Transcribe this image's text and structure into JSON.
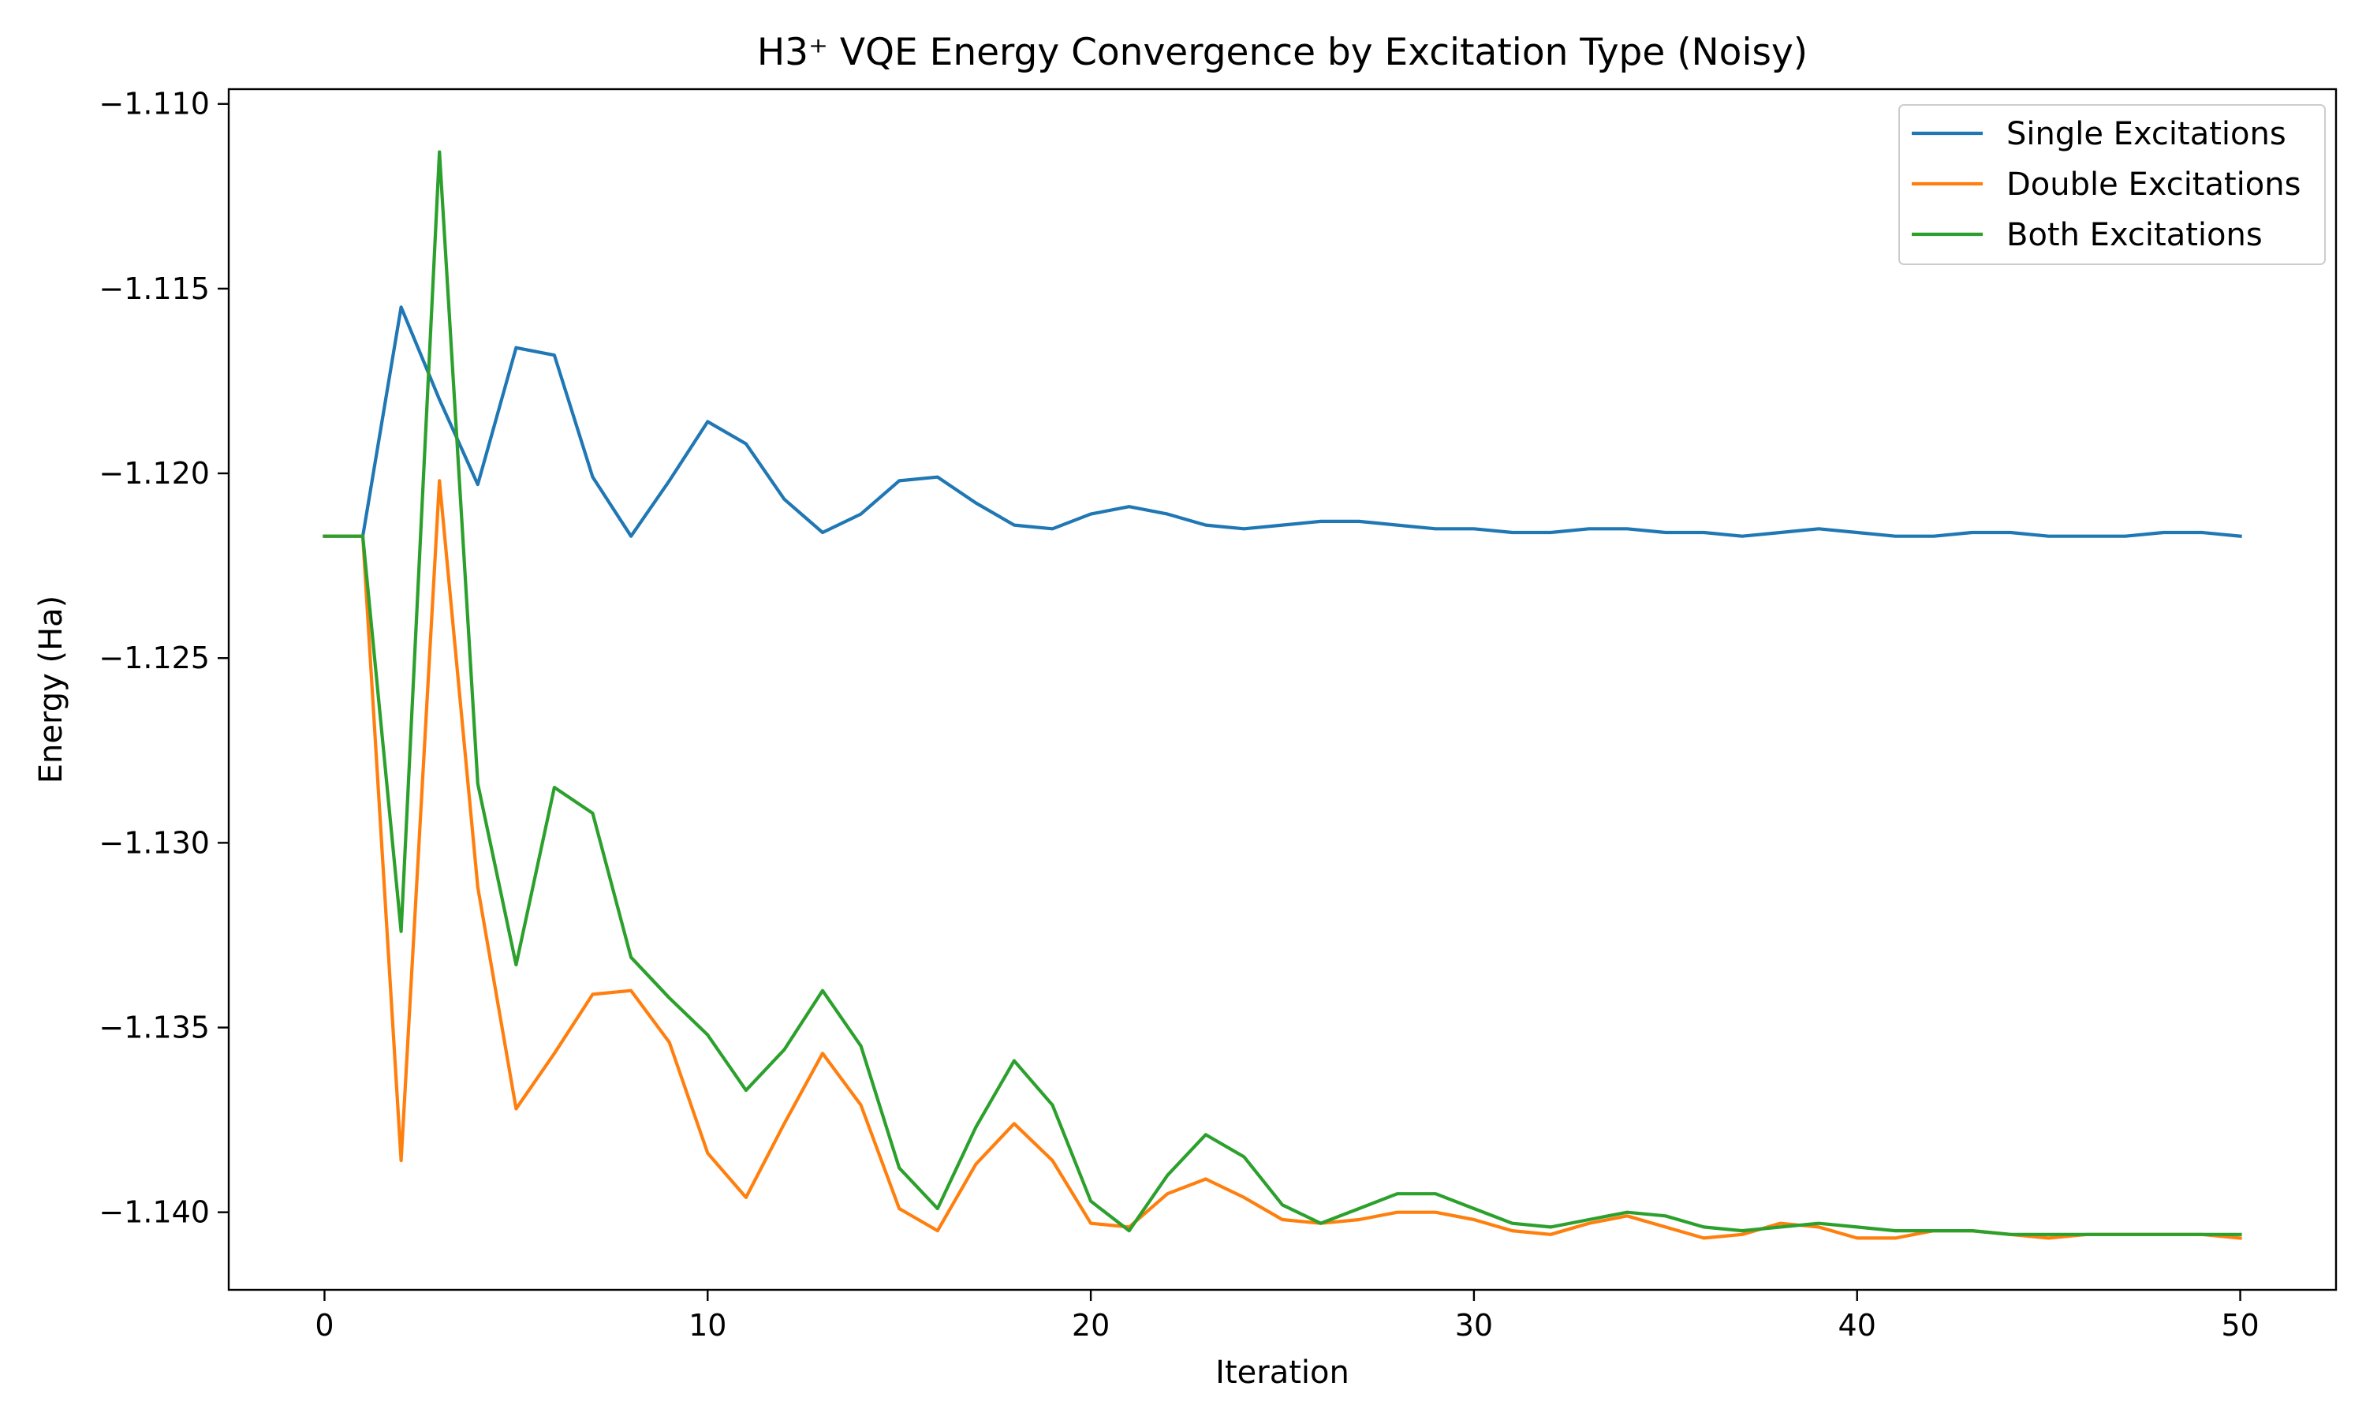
{
  "chart_data": {
    "type": "line",
    "title": "H3⁺ VQE Energy Convergence by Excitation Type (Noisy)",
    "xlabel": "Iteration",
    "ylabel": "Energy (Ha)",
    "xlim": [
      -2.5,
      52.5
    ],
    "ylim": [
      -1.1421,
      -1.1096
    ],
    "x_ticks": [
      0,
      10,
      20,
      30,
      40,
      50
    ],
    "x_tick_labels": [
      "0",
      "10",
      "20",
      "30",
      "40",
      "50"
    ],
    "y_ticks": [
      -1.11,
      -1.115,
      -1.12,
      -1.125,
      -1.13,
      -1.135,
      -1.14
    ],
    "y_tick_labels": [
      "−1.110",
      "−1.115",
      "−1.120",
      "−1.125",
      "−1.130",
      "−1.135",
      "−1.140"
    ],
    "grid": false,
    "legend_position": "top-right",
    "x": [
      0,
      1,
      2,
      3,
      4,
      5,
      6,
      7,
      8,
      9,
      10,
      11,
      12,
      13,
      14,
      15,
      16,
      17,
      18,
      19,
      20,
      21,
      22,
      23,
      24,
      25,
      26,
      27,
      28,
      29,
      30,
      31,
      32,
      33,
      34,
      35,
      36,
      37,
      38,
      39,
      40,
      41,
      42,
      43,
      44,
      45,
      46,
      47,
      48,
      49,
      50
    ],
    "series": [
      {
        "name": "Single Excitations",
        "color": "#1f77b4",
        "values": [
          -1.1217,
          -1.1217,
          -1.1155,
          -1.118,
          -1.1203,
          -1.1166,
          -1.1168,
          -1.1201,
          -1.1217,
          -1.1202,
          -1.1186,
          -1.1192,
          -1.1207,
          -1.1216,
          -1.1211,
          -1.1202,
          -1.1201,
          -1.1208,
          -1.1214,
          -1.1215,
          -1.1211,
          -1.1209,
          -1.1211,
          -1.1214,
          -1.1215,
          -1.1214,
          -1.1213,
          -1.1213,
          -1.1214,
          -1.1215,
          -1.1215,
          -1.1216,
          -1.1216,
          -1.1215,
          -1.1215,
          -1.1216,
          -1.1216,
          -1.1217,
          -1.1216,
          -1.1215,
          -1.1216,
          -1.1217,
          -1.1217,
          -1.1216,
          -1.1216,
          -1.1217,
          -1.1217,
          -1.1217,
          -1.1216,
          -1.1216,
          -1.1217
        ]
      },
      {
        "name": "Double Excitations",
        "color": "#ff7f0e",
        "values": [
          -1.1217,
          -1.1217,
          -1.1386,
          -1.1202,
          -1.1312,
          -1.1372,
          -1.1357,
          -1.1341,
          -1.134,
          -1.1354,
          -1.1384,
          -1.1396,
          -1.1376,
          -1.1357,
          -1.1371,
          -1.1399,
          -1.1405,
          -1.1387,
          -1.1376,
          -1.1386,
          -1.1403,
          -1.1404,
          -1.1395,
          -1.1391,
          -1.1396,
          -1.1402,
          -1.1403,
          -1.1402,
          -1.14,
          -1.14,
          -1.1402,
          -1.1405,
          -1.1406,
          -1.1403,
          -1.1401,
          -1.1404,
          -1.1407,
          -1.1406,
          -1.1403,
          -1.1404,
          -1.1407,
          -1.1407,
          -1.1405,
          -1.1405,
          -1.1406,
          -1.1407,
          -1.1406,
          -1.1406,
          -1.1406,
          -1.1406,
          -1.1407
        ]
      },
      {
        "name": "Both Excitations",
        "color": "#2ca02c",
        "values": [
          -1.1217,
          -1.1217,
          -1.1324,
          -1.1113,
          -1.1284,
          -1.1333,
          -1.1285,
          -1.1292,
          -1.1331,
          -1.1342,
          -1.1352,
          -1.1367,
          -1.1356,
          -1.134,
          -1.1355,
          -1.1388,
          -1.1399,
          -1.1377,
          -1.1359,
          -1.1371,
          -1.1397,
          -1.1405,
          -1.139,
          -1.1379,
          -1.1385,
          -1.1398,
          -1.1403,
          -1.1399,
          -1.1395,
          -1.1395,
          -1.1399,
          -1.1403,
          -1.1404,
          -1.1402,
          -1.14,
          -1.1401,
          -1.1404,
          -1.1405,
          -1.1404,
          -1.1403,
          -1.1404,
          -1.1405,
          -1.1405,
          -1.1405,
          -1.1406,
          -1.1406,
          -1.1406,
          -1.1406,
          -1.1406,
          -1.1406,
          -1.1406
        ]
      }
    ]
  }
}
